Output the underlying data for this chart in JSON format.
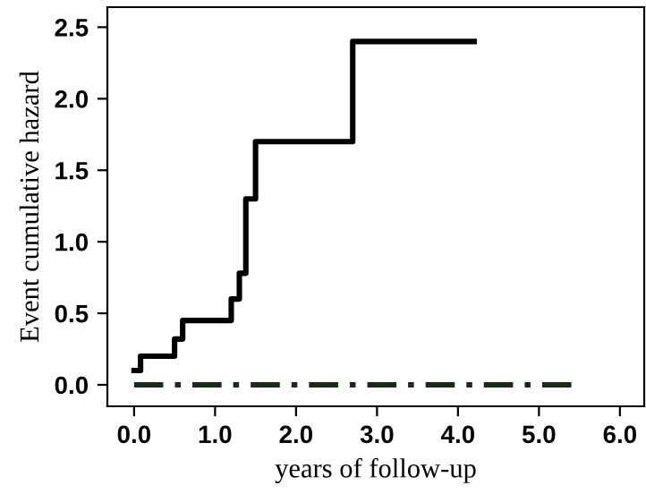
{
  "chart_data": {
    "type": "step",
    "xlabel": "years of follow-up",
    "ylabel": "Event cumulative hazard",
    "series": [
      {
        "color": "#000000",
        "line_style": "solid",
        "x": [
          0.0,
          0.08,
          0.5,
          0.6,
          1.2,
          1.3,
          1.38,
          1.5,
          2.7,
          4.2
        ],
        "values": [
          0.1,
          0.2,
          0.32,
          0.45,
          0.6,
          0.78,
          1.3,
          1.7,
          2.4,
          2.4
        ]
      },
      {
        "color": "#1a2a1a",
        "line_style": "dashed",
        "x": [
          0.0,
          5.4
        ],
        "values": [
          0.0,
          0.0
        ]
      }
    ],
    "xlim": [
      -0.33,
      6.3
    ],
    "ylim": [
      -0.15,
      2.64
    ],
    "xticks": [
      {
        "value": 0,
        "label": "0.0"
      },
      {
        "value": 1,
        "label": "1.0"
      },
      {
        "value": 2,
        "label": "2.0"
      },
      {
        "value": 3,
        "label": "3.0"
      },
      {
        "value": 4,
        "label": "4.0"
      },
      {
        "value": 5,
        "label": "5.0"
      },
      {
        "value": 6,
        "label": "6.0"
      }
    ],
    "yticks": [
      {
        "value": 0,
        "label": "0.0"
      },
      {
        "value": 0.5,
        "label": "0.5"
      },
      {
        "value": 1,
        "label": "1.0"
      },
      {
        "value": 1.5,
        "label": "1.5"
      },
      {
        "value": 2,
        "label": "2.0"
      },
      {
        "value": 2.5,
        "label": "2.5"
      }
    ],
    "grid": false,
    "legend": false
  }
}
